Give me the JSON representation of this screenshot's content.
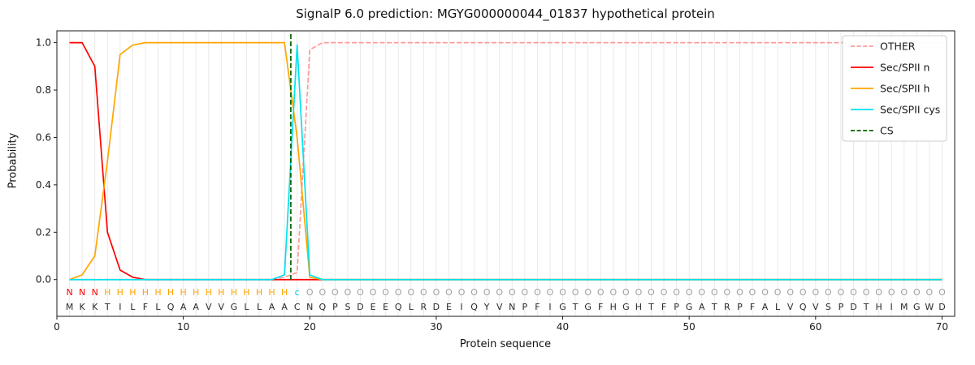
{
  "chart_data": {
    "type": "line",
    "title": "SignalP 6.0 prediction: MGYG000000044_01837 hypothetical protein",
    "xlabel": "Protein sequence",
    "ylabel": "Probability",
    "xlim": [
      0,
      71
    ],
    "ylim": [
      -0.155,
      1.05
    ],
    "xticks": [
      0,
      10,
      20,
      30,
      40,
      50,
      60,
      70
    ],
    "yticks": [
      0.0,
      0.2,
      0.4,
      0.6,
      0.8,
      1.0
    ],
    "x_start": 1,
    "grid": {
      "vertical_every_residue": true,
      "color": "#e9e9e9"
    },
    "axis_color": "#1a1a1a",
    "series": [
      {
        "name": "OTHER",
        "color": "#ff9999",
        "dash": true,
        "values": [
          0,
          0,
          0,
          0,
          0,
          0,
          0,
          0,
          0,
          0,
          0,
          0,
          0,
          0,
          0,
          0,
          0,
          0.01,
          0.03,
          0.97,
          1,
          1,
          1,
          1,
          1,
          1,
          1,
          1,
          1,
          1,
          1,
          1,
          1,
          1,
          1,
          1,
          1,
          1,
          1,
          1,
          1,
          1,
          1,
          1,
          1,
          1,
          1,
          1,
          1,
          1,
          1,
          1,
          1,
          1,
          1,
          1,
          1,
          1,
          1,
          1,
          1,
          1,
          1,
          1,
          1,
          1,
          1,
          1,
          1,
          1
        ]
      },
      {
        "name": "Sec/SPII n",
        "color": "#ff0000",
        "dash": false,
        "values": [
          1,
          1,
          0.9,
          0.2,
          0.04,
          0.01,
          0,
          0,
          0,
          0,
          0,
          0,
          0,
          0,
          0,
          0,
          0,
          0,
          0,
          0,
          0,
          0,
          0,
          0,
          0,
          0,
          0,
          0,
          0,
          0,
          0,
          0,
          0,
          0,
          0,
          0,
          0,
          0,
          0,
          0,
          0,
          0,
          0,
          0,
          0,
          0,
          0,
          0,
          0,
          0,
          0,
          0,
          0,
          0,
          0,
          0,
          0,
          0,
          0,
          0,
          0,
          0,
          0,
          0,
          0,
          0,
          0,
          0,
          0,
          0
        ]
      },
      {
        "name": "Sec/SPII h",
        "color": "#ffa500",
        "dash": false,
        "values": [
          0,
          0.02,
          0.1,
          0.5,
          0.95,
          0.99,
          1,
          1,
          1,
          1,
          1,
          1,
          1,
          1,
          1,
          1,
          1,
          1,
          0.6,
          0.01,
          0,
          0,
          0,
          0,
          0,
          0,
          0,
          0,
          0,
          0,
          0,
          0,
          0,
          0,
          0,
          0,
          0,
          0,
          0,
          0,
          0,
          0,
          0,
          0,
          0,
          0,
          0,
          0,
          0,
          0,
          0,
          0,
          0,
          0,
          0,
          0,
          0,
          0,
          0,
          0,
          0,
          0,
          0,
          0,
          0,
          0,
          0,
          0,
          0,
          0
        ]
      },
      {
        "name": "Sec/SPII cys",
        "color": "#00e2ee",
        "dash": false,
        "values": [
          0,
          0,
          0,
          0,
          0,
          0,
          0,
          0,
          0,
          0,
          0,
          0,
          0,
          0,
          0,
          0,
          0,
          0.02,
          0.99,
          0.02,
          0,
          0,
          0,
          0,
          0,
          0,
          0,
          0,
          0,
          0,
          0,
          0,
          0,
          0,
          0,
          0,
          0,
          0,
          0,
          0,
          0,
          0,
          0,
          0,
          0,
          0,
          0,
          0,
          0,
          0,
          0,
          0,
          0,
          0,
          0,
          0,
          0,
          0,
          0,
          0,
          0,
          0,
          0,
          0,
          0,
          0,
          0,
          0,
          0,
          0
        ]
      }
    ],
    "cs_line": {
      "name": "CS",
      "x": 18.5,
      "color": "#006400",
      "dash": true
    },
    "annotation": {
      "letters": "NNNHHHHHHHHHHHHHHHcOOOOOOOOOOOOOOOOOOOOOOOOOOOOOOOOOOOOOOOOOOOOOOOOOOO",
      "colors": {
        "N": "#ff0000",
        "H": "#ffa500",
        "c": "#00cfe0",
        "O": "#a0a0a0"
      }
    },
    "sequence": {
      "letters": "MKKTILFLQAAVVGLLAACNQPSDEEQLRDEIQYVNPFIGTGFHGHTFPGATRPFALVQVSPDTHIMGWD",
      "color": "#2b2b2b"
    },
    "legend": {
      "position": "upper-right",
      "border_color": "#cccccc",
      "background": "#ffffff"
    }
  }
}
